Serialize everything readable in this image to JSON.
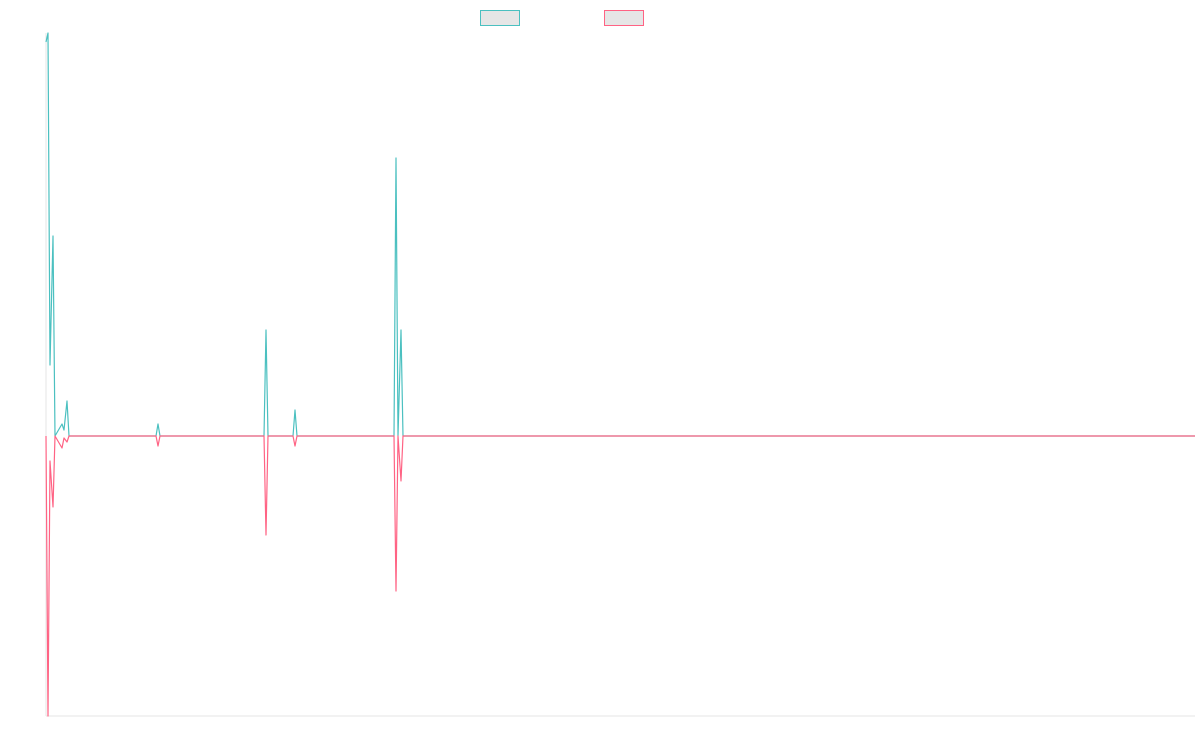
{
  "chart_data": {
    "type": "line",
    "title": "",
    "xlabel": "",
    "ylabel": "",
    "xlim": [
      0,
      1149
    ],
    "ylim": [
      -280,
      403
    ],
    "grid": false,
    "legend_position": "top-center",
    "series": [
      {
        "name": "",
        "color": "#4bc0c0",
        "points": [
          [
            0,
            394
          ],
          [
            2,
            403
          ],
          [
            4,
            71
          ],
          [
            7,
            200
          ],
          [
            9,
            0
          ],
          [
            16,
            12
          ],
          [
            18,
            6
          ],
          [
            21,
            35
          ],
          [
            23,
            0
          ],
          [
            93,
            0
          ],
          [
            110,
            0
          ],
          [
            112,
            12
          ],
          [
            114,
            0
          ],
          [
            218,
            0
          ],
          [
            220,
            106
          ],
          [
            222,
            0
          ],
          [
            247,
            0
          ],
          [
            249,
            26
          ],
          [
            251,
            0
          ],
          [
            348,
            0
          ],
          [
            350,
            278
          ],
          [
            352,
            0
          ],
          [
            355,
            106
          ],
          [
            357,
            0
          ],
          [
            1149,
            0
          ]
        ]
      },
      {
        "name": "",
        "color": "#ff6384",
        "points": [
          [
            0,
            0
          ],
          [
            2,
            -280
          ],
          [
            4,
            -25
          ],
          [
            7,
            -71
          ],
          [
            9,
            0
          ],
          [
            16,
            -12
          ],
          [
            18,
            -2
          ],
          [
            21,
            -6
          ],
          [
            23,
            0
          ],
          [
            93,
            0
          ],
          [
            110,
            0
          ],
          [
            112,
            -10
          ],
          [
            114,
            0
          ],
          [
            218,
            0
          ],
          [
            220,
            -99
          ],
          [
            222,
            0
          ],
          [
            247,
            0
          ],
          [
            249,
            -10
          ],
          [
            251,
            0
          ],
          [
            348,
            0
          ],
          [
            350,
            -155
          ],
          [
            352,
            0
          ],
          [
            355,
            -45
          ],
          [
            357,
            0
          ],
          [
            1149,
            0
          ]
        ]
      }
    ]
  }
}
